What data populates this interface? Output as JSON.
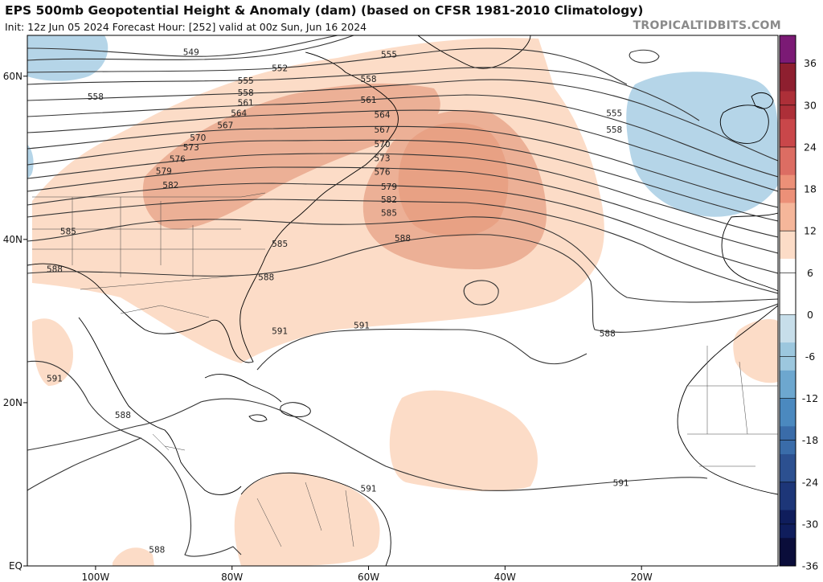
{
  "header": {
    "title": "EPS 500mb Geopotential Height & Anomaly (dam) (based on CFSR 1981-2010 Climatology)",
    "subtitle": "Init: 12z Jun 05 2024   Forecast Hour: [252]   valid at 00z Sun, Jun 16 2024",
    "brand": "TROPICALTIDBITS.COM"
  },
  "map": {
    "lon_range": [
      -110,
      0
    ],
    "lat_range": [
      0,
      65
    ],
    "lon_ticks": [
      {
        "value": -100,
        "label": "100W"
      },
      {
        "value": -80,
        "label": "80W"
      },
      {
        "value": -60,
        "label": "60W"
      },
      {
        "value": -40,
        "label": "40W"
      },
      {
        "value": -20,
        "label": "20W"
      }
    ],
    "lat_ticks": [
      {
        "value": 60,
        "label": "60N"
      },
      {
        "value": 40,
        "label": "40N"
      },
      {
        "value": 20,
        "label": "20N"
      },
      {
        "value": 0,
        "label": "EQ"
      }
    ],
    "contour_labels": [
      {
        "text": "549",
        "lon": -86,
        "lat": 63
      },
      {
        "text": "552",
        "lon": -73,
        "lat": 61
      },
      {
        "text": "555",
        "lon": -57,
        "lat": 62.7
      },
      {
        "text": "555",
        "lon": -78,
        "lat": 59.5
      },
      {
        "text": "558",
        "lon": -100,
        "lat": 57.5
      },
      {
        "text": "558",
        "lon": -78,
        "lat": 58
      },
      {
        "text": "558",
        "lon": -60,
        "lat": 59.7
      },
      {
        "text": "561",
        "lon": -78,
        "lat": 56.8
      },
      {
        "text": "561",
        "lon": -60,
        "lat": 57.1
      },
      {
        "text": "564",
        "lon": -79,
        "lat": 55.5
      },
      {
        "text": "564",
        "lon": -58,
        "lat": 55.3
      },
      {
        "text": "567",
        "lon": -81,
        "lat": 54
      },
      {
        "text": "567",
        "lon": -58,
        "lat": 53.5
      },
      {
        "text": "570",
        "lon": -85,
        "lat": 52.5
      },
      {
        "text": "570",
        "lon": -58,
        "lat": 51.7
      },
      {
        "text": "573",
        "lon": -86,
        "lat": 51.3
      },
      {
        "text": "573",
        "lon": -58,
        "lat": 50
      },
      {
        "text": "576",
        "lon": -88,
        "lat": 49.9
      },
      {
        "text": "576",
        "lon": -58,
        "lat": 48.3
      },
      {
        "text": "579",
        "lon": -90,
        "lat": 48.4
      },
      {
        "text": "579",
        "lon": -57,
        "lat": 46.5
      },
      {
        "text": "582",
        "lon": -89,
        "lat": 46.7
      },
      {
        "text": "582",
        "lon": -57,
        "lat": 44.9
      },
      {
        "text": "585",
        "lon": -104,
        "lat": 41
      },
      {
        "text": "585",
        "lon": -73,
        "lat": 39.5
      },
      {
        "text": "585",
        "lon": -57,
        "lat": 43.3
      },
      {
        "text": "588",
        "lon": -106,
        "lat": 36.4
      },
      {
        "text": "588",
        "lon": -75,
        "lat": 35.4
      },
      {
        "text": "588",
        "lon": -55,
        "lat": 40.2
      },
      {
        "text": "555",
        "lon": -24,
        "lat": 55.5
      },
      {
        "text": "558",
        "lon": -24,
        "lat": 53.5
      },
      {
        "text": "591",
        "lon": -73,
        "lat": 28.8
      },
      {
        "text": "591",
        "lon": -61,
        "lat": 29.5
      },
      {
        "text": "588",
        "lon": -25,
        "lat": 28.5
      },
      {
        "text": "591",
        "lon": -106,
        "lat": 23
      },
      {
        "text": "588",
        "lon": -96,
        "lat": 18.5
      },
      {
        "text": "591",
        "lon": -60,
        "lat": 9.5
      },
      {
        "text": "591",
        "lon": -23,
        "lat": 10.2
      },
      {
        "text": "588",
        "lon": -91,
        "lat": 2
      }
    ]
  },
  "colorbar": {
    "labels": [
      "36",
      "30",
      "24",
      "18",
      "12",
      "6",
      "0",
      "-6",
      "-12",
      "-18",
      "-24",
      "-30",
      "-36"
    ],
    "colors": [
      "#7b1a75",
      "#8e1f2f",
      "#ad2f38",
      "#c9474a",
      "#dc6d63",
      "#ec9078",
      "#f5b69a",
      "#fcdcc7",
      "#ffffff",
      "#ffffff",
      "#c7deea",
      "#9cc7de",
      "#6da7cf",
      "#4b89bf",
      "#3a6ca9",
      "#2c5090",
      "#1d3678",
      "#0f1d5c",
      "#0a0d3a"
    ]
  }
}
